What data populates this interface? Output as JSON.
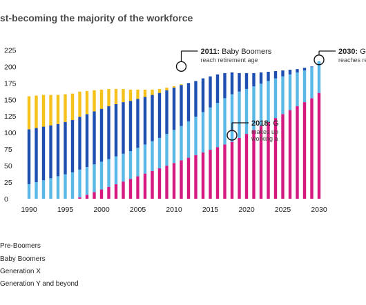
{
  "title": "st-becoming the majority of the workforce",
  "colors": {
    "pre_boomers": "#f5c21b",
    "baby_boomers": "#1f4fb0",
    "generation_x": "#5ab8e6",
    "generation_y": "#d6197f"
  },
  "legend": [
    {
      "label": "Pre-Boomers",
      "color": "#f5c21b"
    },
    {
      "label": "Baby Boomers",
      "color": "#1f4fb0"
    },
    {
      "label": "Generation X",
      "color": "#5ab8e6"
    },
    {
      "label": "Generation Y and beyond",
      "color": "#d6197f"
    }
  ],
  "annotations": [
    {
      "year": 2011,
      "value": 200,
      "bold": "2011:",
      "text": " Baby Boomers",
      "sub": "reach retirement age"
    },
    {
      "year": 2030,
      "value": 210,
      "bold": "2030:",
      "text": " G",
      "sub": "reaches re"
    },
    {
      "year": 2018,
      "value": 96,
      "bold": "2018:",
      "text": " G",
      "sub": "makes up",
      "sub2": "working a"
    }
  ],
  "chart_data": {
    "type": "bar",
    "stacked": true,
    "title": "st-becoming the majority of the workforce",
    "xlabel": "",
    "ylabel": "",
    "xlim": [
      1990,
      2030
    ],
    "ylim": [
      0,
      240
    ],
    "yticks": [
      0,
      25,
      50,
      75,
      100,
      125,
      150,
      175,
      200,
      225
    ],
    "xticks": [
      1990,
      1995,
      2000,
      2005,
      2010,
      2015,
      2020,
      2025,
      2030
    ],
    "categories": [
      1990,
      1991,
      1992,
      1993,
      1994,
      1995,
      1996,
      1997,
      1998,
      1999,
      2000,
      2001,
      2002,
      2003,
      2004,
      2005,
      2006,
      2007,
      2008,
      2009,
      2010,
      2011,
      2012,
      2013,
      2014,
      2015,
      2016,
      2017,
      2018,
      2019,
      2020,
      2021,
      2022,
      2023,
      2024,
      2025,
      2026,
      2027,
      2028,
      2029,
      2030
    ],
    "series": [
      {
        "name": "Generation Y and beyond",
        "color": "#d6197f",
        "values": [
          0,
          0,
          0,
          0,
          0,
          0,
          0,
          2,
          6,
          10,
          14,
          18,
          22,
          26,
          30,
          34,
          38,
          42,
          46,
          50,
          54,
          58,
          62,
          66,
          70,
          74,
          78,
          82,
          86,
          92,
          98,
          104,
          110,
          116,
          122,
          128,
          134,
          140,
          146,
          152,
          160
        ]
      },
      {
        "name": "Generation X",
        "color": "#5ab8e6",
        "values": [
          22,
          25,
          28,
          31,
          34,
          37,
          40,
          42,
          42,
          42,
          42,
          42,
          42,
          42,
          42,
          43,
          44,
          45,
          46,
          48,
          50,
          52,
          55,
          58,
          61,
          64,
          67,
          70,
          72,
          70,
          68,
          66,
          64,
          62,
          60,
          57,
          54,
          51,
          48,
          47,
          48
        ]
      },
      {
        "name": "Baby Boomers",
        "color": "#1f4fb0",
        "values": [
          83,
          82,
          81,
          80,
          79,
          79,
          79,
          80,
          80,
          80,
          80,
          80,
          79,
          78,
          76,
          74,
          72,
          70,
          68,
          66,
          64,
          62,
          58,
          54,
          51,
          47,
          43,
          38,
          33,
          28,
          24,
          20,
          17,
          14,
          11,
          9,
          7,
          5,
          4,
          1,
          0
        ]
      },
      {
        "name": "Pre-Boomers",
        "color": "#f5c21b",
        "values": [
          50,
          49,
          48,
          46,
          44,
          42,
          40,
          38,
          35,
          32,
          29,
          26,
          23,
          20,
          17,
          14,
          11,
          8,
          6,
          4,
          2,
          1,
          0,
          0,
          0,
          0,
          0,
          0,
          0,
          0,
          0,
          0,
          0,
          0,
          0,
          0,
          0,
          0,
          0,
          0,
          0
        ]
      }
    ],
    "grid": false,
    "legend_position": "bottom-left"
  }
}
